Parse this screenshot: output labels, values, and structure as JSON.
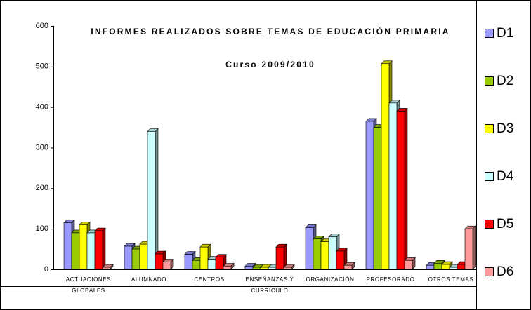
{
  "chart_data": {
    "type": "bar3d",
    "title": "INFORMES REALIZADOS SOBRE TEMAS DE EDUCACIÓN PRIMARIA",
    "subtitle": "Curso 2009/2010",
    "categories": [
      "ACTUACIONES GLOBALES",
      "ALUMNADO",
      "CENTROS",
      "ENSEÑANZAS Y CURRÍCULO",
      "ORGANIZACIÓN",
      "PROFESORADO",
      "OTROS TEMAS"
    ],
    "series": [
      {
        "name": "D1",
        "color": "#9999ff",
        "values": [
          115,
          57,
          37,
          8,
          103,
          365,
          10
        ]
      },
      {
        "name": "D2",
        "color": "#99cc00",
        "values": [
          90,
          50,
          22,
          5,
          75,
          350,
          15
        ]
      },
      {
        "name": "D3",
        "color": "#ffff00",
        "values": [
          110,
          62,
          55,
          5,
          68,
          507,
          12
        ]
      },
      {
        "name": "D4",
        "color": "#ccffff",
        "values": [
          90,
          340,
          25,
          5,
          80,
          410,
          5
        ]
      },
      {
        "name": "D5",
        "color": "#ff0000",
        "values": [
          95,
          38,
          30,
          55,
          45,
          390,
          12
        ]
      },
      {
        "name": "D6",
        "color": "#ff9999",
        "values": [
          5,
          18,
          8,
          5,
          10,
          22,
          100
        ]
      }
    ],
    "ylim": [
      0,
      600
    ],
    "yticks": [
      0,
      100,
      200,
      300,
      400,
      500,
      600
    ],
    "legend": "right"
  }
}
